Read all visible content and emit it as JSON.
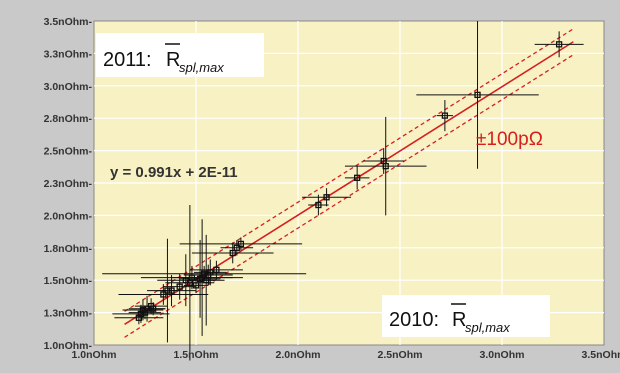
{
  "chart_data": {
    "type": "scatter",
    "title": "",
    "xlabel": "",
    "ylabel": "",
    "xlim": [
      1.0,
      3.5
    ],
    "ylim": [
      1.0,
      3.5
    ],
    "x_ticks": [
      {
        "value": 1.0,
        "label": "1.0nOhm"
      },
      {
        "value": 1.5,
        "label": "1.5nOhm"
      },
      {
        "value": 2.0,
        "label": "2.0nOhm"
      },
      {
        "value": 2.5,
        "label": "2.5nOhm"
      },
      {
        "value": 3.0,
        "label": "3.0nOhm"
      },
      {
        "value": 3.5,
        "label": "3.5nOhm"
      }
    ],
    "y_ticks": [
      {
        "value": 1.0,
        "label": "1.0nOhm-"
      },
      {
        "value": 1.25,
        "label": "1.3nOhm-"
      },
      {
        "value": 1.5,
        "label": "1.5nOhm-"
      },
      {
        "value": 1.75,
        "label": "1.8nOhm-"
      },
      {
        "value": 2.0,
        "label": "2.0nOhm-"
      },
      {
        "value": 2.25,
        "label": "2.3nOhm-"
      },
      {
        "value": 2.5,
        "label": "2.5nOhm-"
      },
      {
        "value": 2.75,
        "label": "2.8nOhm-"
      },
      {
        "value": 3.0,
        "label": "3.0nOhm-"
      },
      {
        "value": 3.25,
        "label": "3.3nOhm-"
      },
      {
        "value": 3.5,
        "label": "3.5nOhm-"
      }
    ],
    "grid": true,
    "colors": {
      "plot_bg": "#f7f1c4",
      "frame_bg": "#c9c9c9",
      "grid": "#ffffff",
      "points": "#111111",
      "fit_line": "#d62020",
      "band": "#d62020"
    },
    "fit": {
      "slope": 0.991,
      "intercept": 0.02,
      "band_halfwidth": 0.1
    },
    "points": [
      {
        "x": 1.22,
        "y": 1.21,
        "xerr": 0.12,
        "yerr": 0.05
      },
      {
        "x": 1.23,
        "y": 1.24,
        "xerr": 0.14,
        "yerr": 0.07
      },
      {
        "x": 1.24,
        "y": 1.27,
        "xerr": 0.1,
        "yerr": 0.08
      },
      {
        "x": 1.25,
        "y": 1.25,
        "xerr": 0.08,
        "yerr": 0.05
      },
      {
        "x": 1.26,
        "y": 1.28,
        "xerr": 0.09,
        "yerr": 0.1
      },
      {
        "x": 1.28,
        "y": 1.3,
        "xerr": 0.08,
        "yerr": 0.06
      },
      {
        "x": 1.29,
        "y": 1.28,
        "xerr": 0.06,
        "yerr": 0.05
      },
      {
        "x": 1.34,
        "y": 1.39,
        "xerr": 0.22,
        "yerr": 0.08
      },
      {
        "x": 1.36,
        "y": 1.42,
        "xerr": 0.05,
        "yerr": 0.4
      },
      {
        "x": 1.38,
        "y": 1.42,
        "xerr": 0.12,
        "yerr": 0.12
      },
      {
        "x": 1.42,
        "y": 1.45,
        "xerr": 0.08,
        "yerr": 0.1
      },
      {
        "x": 1.45,
        "y": 1.5,
        "xerr": 0.14,
        "yerr": 0.2
      },
      {
        "x": 1.47,
        "y": 1.48,
        "xerr": 0.12,
        "yerr": 0.6
      },
      {
        "x": 1.48,
        "y": 1.52,
        "xerr": 0.25,
        "yerr": 0.09
      },
      {
        "x": 1.5,
        "y": 1.46,
        "xerr": 0.06,
        "yerr": 0.06
      },
      {
        "x": 1.52,
        "y": 1.51,
        "xerr": 0.1,
        "yerr": 0.3
      },
      {
        "x": 1.53,
        "y": 1.52,
        "xerr": 0.15,
        "yerr": 0.45
      },
      {
        "x": 1.54,
        "y": 1.55,
        "xerr": 0.5,
        "yerr": 0.06
      },
      {
        "x": 1.55,
        "y": 1.5,
        "xerr": 0.09,
        "yerr": 0.35
      },
      {
        "x": 1.56,
        "y": 1.54,
        "xerr": 0.12,
        "yerr": 0.08
      },
      {
        "x": 1.57,
        "y": 1.56,
        "xerr": 0.08,
        "yerr": 0.1
      },
      {
        "x": 1.6,
        "y": 1.58,
        "xerr": 0.13,
        "yerr": 0.07
      },
      {
        "x": 1.68,
        "y": 1.71,
        "xerr": 0.2,
        "yerr": 0.08
      },
      {
        "x": 1.7,
        "y": 1.75,
        "xerr": 0.08,
        "yerr": 0.06
      },
      {
        "x": 1.72,
        "y": 1.78,
        "xerr": 0.3,
        "yerr": 0.05
      },
      {
        "x": 2.1,
        "y": 2.08,
        "xerr": 0.05,
        "yerr": 0.08
      },
      {
        "x": 2.14,
        "y": 2.14,
        "xerr": 0.12,
        "yerr": 0.07
      },
      {
        "x": 2.29,
        "y": 2.29,
        "xerr": 0.06,
        "yerr": 0.09
      },
      {
        "x": 2.42,
        "y": 2.42,
        "xerr": 0.1,
        "yerr": 0.1
      },
      {
        "x": 2.43,
        "y": 2.38,
        "xerr": 0.2,
        "yerr": 0.38
      },
      {
        "x": 2.72,
        "y": 2.77,
        "xerr": 0.04,
        "yerr": 0.12
      },
      {
        "x": 2.88,
        "y": 2.93,
        "xerr": 0.3,
        "yerr": 0.57
      },
      {
        "x": 3.28,
        "y": 3.32,
        "xerr": 0.12,
        "yerr": 0.1
      }
    ],
    "annotations": {
      "top_label": "2011: ",
      "bottom_label": "2010: ",
      "r_symbol": "R",
      "r_subscript": "spl,max",
      "equation": "y = 0.991x + 2E-11",
      "band_label": "±100pΩ"
    }
  }
}
